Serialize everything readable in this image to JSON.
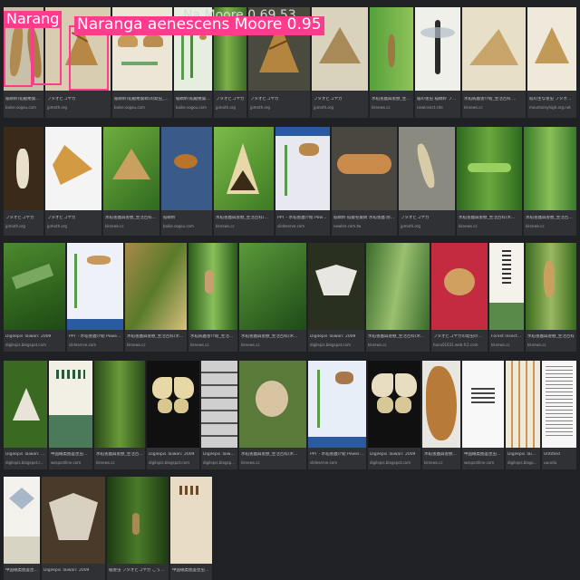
{
  "detection": {
    "label_short": "Narang",
    "label_full": "Naranga aenescens Moore 0.95",
    "overlay_text": "Na    Moore 0.69 53"
  },
  "row1": [
    {
      "caption": "稲螟蛉(稻縱捲葉螟)的幼虫_百度百科",
      "source": "baike.sogou.com"
    },
    {
      "caption": "フタオビコヤガ",
      "source": "jpmoth.org"
    },
    {
      "caption": "稲螟蛉(稻縱捲葉螟)的幼虫_百度百科",
      "source": "baike.sogou.com"
    },
    {
      "caption": "稲螟蛉(稻縱捲葉螟)的幼虫_百度百科",
      "source": "baike.sogou.com"
    },
    {
      "caption": "フタオビコヤガ",
      "source": "jpmoth.org"
    },
    {
      "caption": "フタオビコヤガ",
      "source": "jpmoth.org"
    },
    {
      "caption": "フタオビコヤガ",
      "source": "jpmoth.org"
    },
    {
      "caption": "水稻害蟲與害獸_生活百科(禾...",
      "source": "kknews.cc"
    },
    {
      "caption": "稲の害虫 稲螟蛉 フタオビコヤガ",
      "source": "newinsect.site"
    },
    {
      "caption": "水稻病蟲害介紹_生活百科 ...",
      "source": "kknews.cc"
    },
    {
      "caption": "稻の主な害虫 フタオビコヤガ",
      "source": "mountainyhigh.org.net"
    }
  ],
  "row2": [
    {
      "caption": "フタオビコヤガ",
      "source": "jpmoth.org"
    },
    {
      "caption": "フタオビコヤガ",
      "source": "jpmoth.org"
    },
    {
      "caption": "水稻害蟲與害獸_生活百科(禾...",
      "source": "kknews.cc"
    },
    {
      "caption": "稻螟蛉",
      "source": "baike.sogou.com"
    },
    {
      "caption": "水稻害蟲與害獸_生活百科(禾...",
      "source": "kknews.cc"
    },
    {
      "caption": "PPT - 水稻害蟲介紹 PowerPoint Presenta...",
      "source": "slideserve.com"
    },
    {
      "caption": "稻螟蛉 稻縱卷葉螟 水稻害蟲 防治方法",
      "source": "newlen.com.tw"
    },
    {
      "caption": "フタオビコヤガ",
      "source": "jpmoth.org"
    },
    {
      "caption": "水稻害蟲與害獸_生活百科(禾...",
      "source": "kknews.cc"
    },
    {
      "caption": "水稻害蟲與害獸_生活百科(禾...",
      "source": "kknews.cc"
    }
  ],
  "row3": [
    {
      "caption": "Digilepis Taiwan: 2009",
      "source": "digilepis.blogspot.com"
    },
    {
      "caption": "PPT - 水稻害蟲介紹 PowerPoint Presentat...",
      "source": "slideserve.com"
    },
    {
      "caption": "水稻害蟲與害獸_生活百科(禾...",
      "source": "kknews.cc"
    },
    {
      "caption": "水稻病蟲害介紹_生活百科(禾...",
      "source": "kknews.cc"
    },
    {
      "caption": "水稻害蟲與害獸_生活百科(禾...",
      "source": "kknews.cc"
    },
    {
      "caption": "Digilepis Taiwan: 2009",
      "source": "digilepis.blogspot.com"
    },
    {
      "caption": "水稻害蟲與害獸_生活百科(禾...",
      "source": "kknews.cc"
    },
    {
      "caption": "フタオビコヤガの幼虫の被害写真",
      "source": "hanaS1631.web.fc2.com"
    },
    {
      "caption": "Forest Insects of Ba Shu...",
      "source": "kknews.cc"
    },
    {
      "caption": "水稻害蟲與害獸_生活百科",
      "source": "kknews.cc"
    }
  ],
  "row4": [
    {
      "caption": "Digilepis Taiwan: 2009",
      "source": "digilepis.blogspot.com"
    },
    {
      "caption": "中国蛾类图鉴昆虫类全套...",
      "source": "wzspostline.com"
    },
    {
      "caption": "水稻害蟲與害獸_生活百科(禾...",
      "source": "kknews.cc"
    },
    {
      "caption": "Digilepis Taiwan: 2009",
      "source": "digilepis.blogspot.com"
    },
    {
      "caption": "Digilepis Taiwan: 2009",
      "source": "digilepis.blogspot.com"
    },
    {
      "caption": "水稻害蟲與害獸_生活百科(禾...",
      "source": "kknews.cc"
    },
    {
      "caption": "PPT - 水稻害蟲介紹 PowerPoint Presentat...",
      "source": "slideserve.com"
    },
    {
      "caption": "Digilepis Taiwan: 2009",
      "source": "digilepis.blogspot.com"
    },
    {
      "caption": "水稻害蟲與害獸_生活...",
      "source": "kknews.cc"
    },
    {
      "caption": "中国蛾类图鉴昆虫类全套...",
      "source": "wzspostline.com"
    },
    {
      "caption": "Digilepis Taiwan: 2009",
      "source": "digilepis.blogspot.com"
    },
    {
      "caption": "Untitled",
      "source": "uw.edu"
    }
  ],
  "row5": [
    {
      "caption": "中国蛾类图鉴昆虫类全...",
      "source": "wzspostline.com"
    },
    {
      "caption": "Digilepis Taiwan: 2009",
      "source": "digilepis.blogspot.com"
    },
    {
      "caption": "稲害虫 フタオビコヤガ こうら農業ネット",
      "source": "jpmoth.org"
    },
    {
      "caption": "中国蛾类图鉴昆虫类全套购物...",
      "source": "wzspostline.com"
    }
  ]
}
